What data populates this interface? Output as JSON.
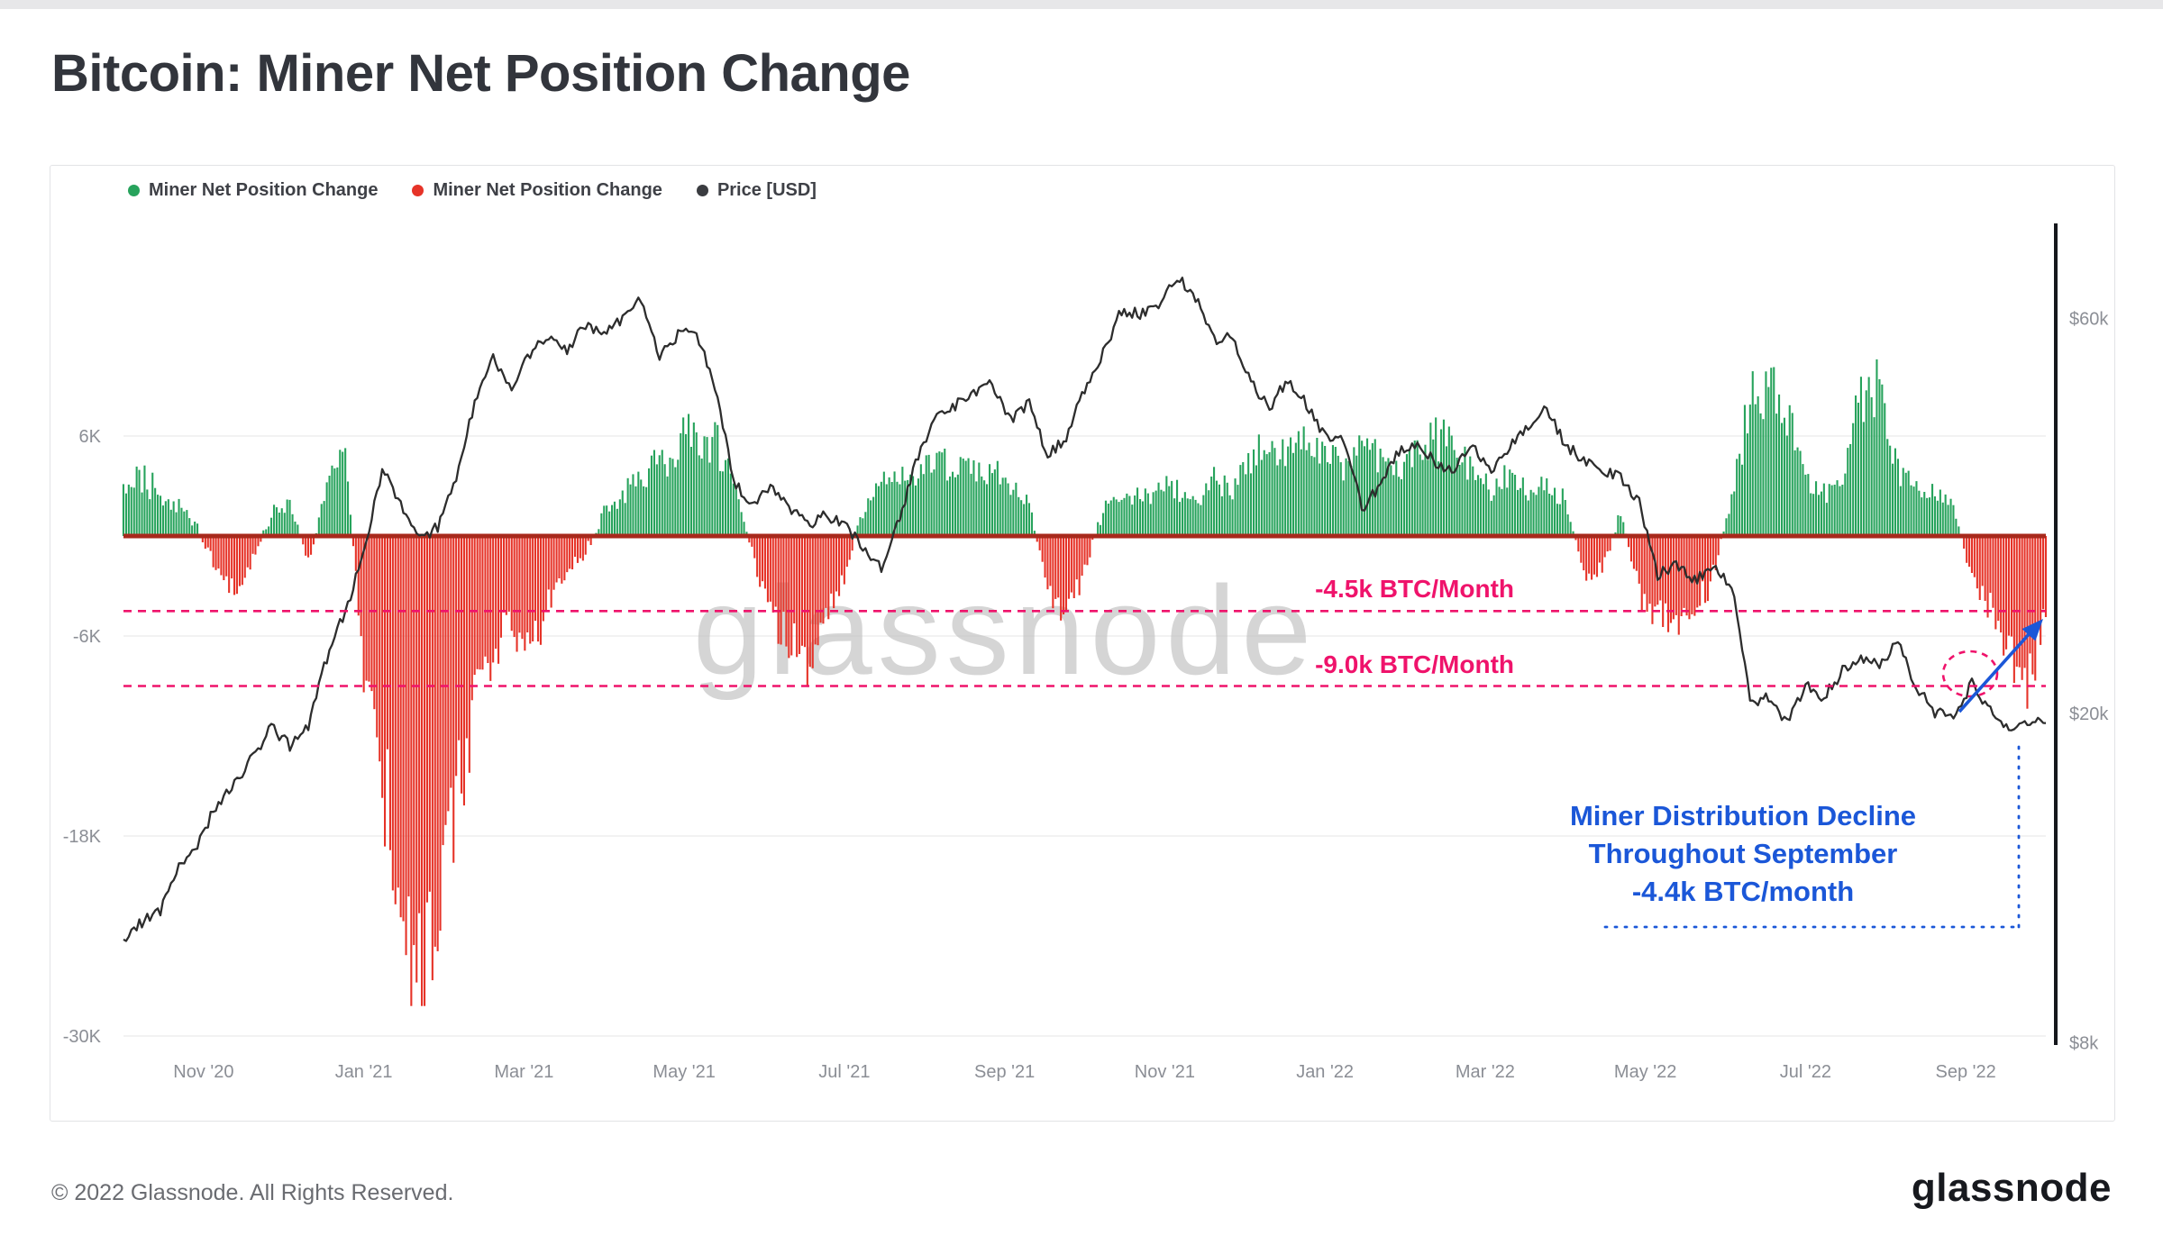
{
  "page": {
    "title": "Bitcoin: Miner Net Position Change",
    "watermark": "glassnode",
    "footer_left": "© 2022 Glassnode. All Rights Reserved.",
    "footer_logo": "glassnode"
  },
  "legend": {
    "items": [
      {
        "label": "Miner Net Position Change",
        "color": "#27a35c"
      },
      {
        "label": "Miner Net Position Change",
        "color": "#e63328"
      },
      {
        "label": "Price [USD]",
        "color": "#3a3c40"
      }
    ]
  },
  "axes": {
    "left_ticks": [
      "6K",
      "-6K",
      "-18K",
      "-30K"
    ],
    "left_tick_values": [
      6,
      -6,
      -18,
      -30
    ],
    "right_ticks": [
      "$60k",
      "$20k",
      "$8k"
    ],
    "right_tick_values": [
      60,
      20,
      8
    ],
    "x_ticks": [
      "Nov '20",
      "Jan '21",
      "Mar '21",
      "May '21",
      "Jul '21",
      "Sep '21",
      "Nov '21",
      "Jan '22",
      "Mar '22",
      "May '22",
      "Jul '22",
      "Sep '22"
    ],
    "x_tick_months": [
      1,
      3,
      5,
      7,
      9,
      11,
      13,
      15,
      17,
      19,
      21,
      23
    ]
  },
  "annotations": {
    "line1": {
      "label": "-4.5k BTC/Month",
      "value_k": -4.5,
      "color": "#ef136b"
    },
    "line2": {
      "label": "-9.0k BTC/Month",
      "value_k": -9.0,
      "color": "#ef136b"
    },
    "callout": {
      "line1": "Miner Distribution Decline",
      "line2": "Throughout September",
      "line3": "-4.4k BTC/month",
      "color": "#1b57d8"
    }
  },
  "chart_data": {
    "type": "combo",
    "title": "Bitcoin: Miner Net Position Change",
    "x_start": "2020-10-05",
    "x_step_days": 7,
    "x_range_months": 24,
    "left_ylim_k": [
      -30,
      6
    ],
    "right_axis": "log USD",
    "right_ticks_usd_k": [
      60,
      20,
      8
    ],
    "baseline_color": "#a8291c",
    "bar_series": {
      "name": "Miner Net Position Change",
      "unit": "thousand BTC per month",
      "positive_color": "#27a35c",
      "negative_color": "#e63328",
      "values": [
        2.8,
        3.5,
        2.6,
        1.8,
        0.6,
        -2.2,
        -3.6,
        -1.6,
        1.2,
        2.2,
        -1.6,
        3.0,
        5.3,
        -8.0,
        -15.0,
        -21.0,
        -26.5,
        -23.0,
        -17.0,
        -10.0,
        -7.0,
        -5.5,
        -7.5,
        -4.0,
        -2.0,
        -1.0,
        1.5,
        2.5,
        3.5,
        4.6,
        5.6,
        6.3,
        5.8,
        3.5,
        -1.0,
        -4.5,
        -6.5,
        -7.5,
        -5.0,
        -2.5,
        1.5,
        3.0,
        3.6,
        4.1,
        4.5,
        4.1,
        3.6,
        3.8,
        3.1,
        2.1,
        -3.5,
        -4.5,
        -2.0,
        1.5,
        2.5,
        2.1,
        3.0,
        2.6,
        2.1,
        3.5,
        3.1,
        4.6,
        5.6,
        5.1,
        5.8,
        5.2,
        4.6,
        5.5,
        4.8,
        3.6,
        5.2,
        6.2,
        5.0,
        3.6,
        2.6,
        3.5,
        2.6,
        3.0,
        2.1,
        -2.5,
        -2.0,
        1.5,
        -3.5,
        -4.5,
        -5.5,
        -4.5,
        -2.5,
        2.5,
        8.0,
        9.5,
        7.5,
        3.5,
        2.5,
        3.0,
        8.5,
        9.0,
        4.0,
        3.0,
        2.5,
        2.0,
        -2.5,
        -4.5,
        -7.0,
        -8.5,
        -5.5
      ]
    },
    "line_series": {
      "name": "Price [USD]",
      "unit": "thousand USD",
      "color": "#2d2d2d",
      "axis": "right-log",
      "values": [
        10.7,
        11.2,
        11.5,
        13.1,
        13.8,
        15.5,
        16.4,
        17.7,
        19.2,
        18.3,
        19.3,
        23.3,
        26.6,
        31.0,
        39.5,
        35.8,
        32.3,
        33.6,
        38.3,
        47.6,
        54.1,
        49.1,
        54.6,
        57.1,
        55.0,
        58.8,
        58.1,
        60.1,
        63.2,
        54.1,
        57.4,
        57.9,
        49.1,
        38.2,
        35.7,
        37.3,
        35.6,
        33.8,
        34.7,
        33.9,
        31.6,
        29.9,
        34.3,
        40.9,
        45.6,
        47.2,
        48.9,
        49.9,
        45.2,
        47.3,
        40.9,
        43.2,
        49.2,
        54.7,
        61.3,
        60.9,
        61.5,
        67.4,
        63.6,
        56.4,
        57.1,
        50.1,
        46.8,
        50.8,
        47.3,
        43.2,
        42.8,
        35.2,
        37.9,
        41.5,
        42.4,
        40.1,
        39.2,
        42.4,
        38.8,
        41.9,
        44.5,
        46.8,
        42.2,
        40.5,
        39.5,
        38.6,
        36.0,
        29.4,
        30.3,
        29.0,
        29.9,
        28.4,
        20.6,
        21.0,
        19.4,
        21.6,
        20.9,
        22.5,
        23.3,
        23.0,
        24.3,
        21.5,
        20.1,
        19.8,
        21.7,
        20.2,
        19.0,
        19.4,
        19.5
      ]
    }
  }
}
